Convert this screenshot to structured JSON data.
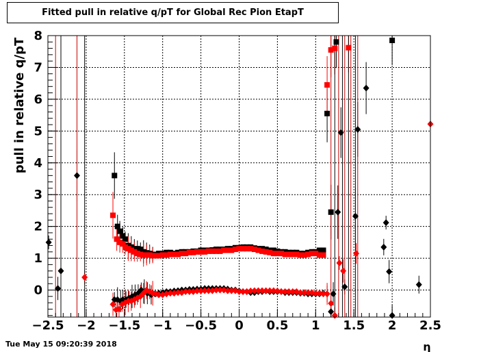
{
  "title": "Fitted pull in relative q/pT for Global Rec Pion EtapT",
  "timestamp": "Tue May 15 09:20:39 2018",
  "chart_data": {
    "type": "scatter",
    "title": "Fitted pull in relative q/pT for Global Rec Pion EtapT",
    "xlabel": "η",
    "ylabel": "pull in relative q/pT",
    "xlim": [
      -2.5,
      2.5
    ],
    "ylim": [
      -0.85,
      8
    ],
    "grid": true,
    "x_ticks": [
      "-2.5",
      "-2",
      "-1.5",
      "-1",
      "-0.5",
      "0",
      "0.5",
      "1",
      "1.5",
      "2",
      "2.5"
    ],
    "y_ticks": [
      "0",
      "1",
      "2",
      "3",
      "4",
      "5",
      "6",
      "7",
      "8"
    ],
    "series": [
      {
        "marker": "square",
        "color": "#000000",
        "x": [
          -1.63,
          -1.59,
          -1.56,
          -1.52,
          -1.49,
          -1.45,
          -1.41,
          -1.37,
          -1.33,
          -1.29,
          -1.25,
          -1.21,
          -1.17,
          -1.13,
          -1.09,
          -1.05,
          -1.0,
          -0.95,
          -0.9,
          -0.85,
          -0.8,
          -0.75,
          -0.7,
          -0.65,
          -0.6,
          -0.55,
          -0.5,
          -0.45,
          -0.4,
          -0.35,
          -0.3,
          -0.25,
          -0.2,
          -0.15,
          -0.1,
          -0.05,
          0.0,
          0.05,
          0.1,
          0.15,
          0.2,
          0.25,
          0.3,
          0.35,
          0.4,
          0.45,
          0.5,
          0.55,
          0.6,
          0.65,
          0.7,
          0.75,
          0.8,
          0.85,
          0.9,
          0.95,
          1.0,
          1.05,
          1.1,
          1.15,
          1.2,
          1.27,
          2.0
        ],
        "y": [
          3.6,
          2.0,
          1.85,
          1.7,
          1.6,
          1.4,
          1.35,
          1.3,
          1.3,
          1.28,
          1.2,
          1.17,
          1.15,
          1.12,
          1.12,
          1.15,
          1.15,
          1.18,
          1.18,
          1.15,
          1.18,
          1.2,
          1.2,
          1.2,
          1.22,
          1.22,
          1.25,
          1.25,
          1.25,
          1.26,
          1.28,
          1.28,
          1.28,
          1.3,
          1.3,
          1.33,
          1.33,
          1.35,
          1.35,
          1.35,
          1.32,
          1.3,
          1.3,
          1.28,
          1.25,
          1.25,
          1.22,
          1.2,
          1.2,
          1.18,
          1.18,
          1.18,
          1.15,
          1.15,
          1.18,
          1.2,
          1.2,
          1.25,
          1.25,
          5.55,
          2.45,
          7.8,
          7.85
        ]
      },
      {
        "marker": "square",
        "color": "#ff0000",
        "x": [
          -1.65,
          -1.6,
          -1.56,
          -1.52,
          -1.49,
          -1.45,
          -1.41,
          -1.37,
          -1.33,
          -1.29,
          -1.25,
          -1.21,
          -1.17,
          -1.13,
          -1.09,
          -1.05,
          -1.0,
          -0.95,
          -0.9,
          -0.85,
          -0.8,
          -0.75,
          -0.7,
          -0.65,
          -0.6,
          -0.55,
          -0.5,
          -0.45,
          -0.4,
          -0.35,
          -0.3,
          -0.25,
          -0.2,
          -0.15,
          -0.1,
          -0.05,
          0.0,
          0.05,
          0.1,
          0.15,
          0.2,
          0.25,
          0.3,
          0.35,
          0.4,
          0.45,
          0.5,
          0.55,
          0.6,
          0.65,
          0.7,
          0.75,
          0.8,
          0.85,
          0.9,
          0.95,
          1.0,
          1.05,
          1.1,
          1.15,
          1.2,
          1.25,
          1.43
        ],
        "y": [
          2.35,
          1.6,
          1.5,
          1.45,
          1.35,
          1.3,
          1.25,
          1.2,
          1.15,
          1.12,
          1.1,
          1.1,
          1.1,
          1.08,
          1.08,
          1.08,
          1.1,
          1.1,
          1.12,
          1.12,
          1.12,
          1.15,
          1.15,
          1.18,
          1.18,
          1.2,
          1.2,
          1.2,
          1.22,
          1.22,
          1.22,
          1.22,
          1.25,
          1.25,
          1.25,
          1.28,
          1.3,
          1.3,
          1.3,
          1.3,
          1.28,
          1.25,
          1.22,
          1.2,
          1.18,
          1.15,
          1.15,
          1.15,
          1.12,
          1.12,
          1.12,
          1.12,
          1.1,
          1.1,
          1.12,
          1.15,
          1.15,
          1.1,
          1.1,
          6.45,
          7.55,
          7.6,
          7.62
        ]
      },
      {
        "marker": "diamond",
        "color": "#000000",
        "x": [
          -2.49,
          -2.37,
          -2.33,
          -2.12,
          -1.63,
          -1.59,
          -1.55,
          -1.52,
          -1.48,
          -1.44,
          -1.4,
          -1.36,
          -1.32,
          -1.28,
          -1.24,
          -1.2,
          -1.15,
          -1.1,
          -1.05,
          -1.0,
          -0.95,
          -0.9,
          -0.85,
          -0.8,
          -0.75,
          -0.7,
          -0.65,
          -0.6,
          -0.55,
          -0.5,
          -0.45,
          -0.4,
          -0.35,
          -0.3,
          -0.25,
          -0.2,
          -0.15,
          -0.1,
          -0.05,
          0.0,
          0.05,
          0.1,
          0.15,
          0.2,
          0.25,
          0.3,
          0.35,
          0.4,
          0.45,
          0.5,
          0.55,
          0.6,
          0.65,
          0.7,
          0.75,
          0.8,
          0.85,
          0.9,
          0.95,
          1.0,
          1.05,
          1.1,
          1.15,
          1.2,
          1.23,
          1.29,
          1.33,
          1.38,
          1.52,
          1.55,
          1.66,
          1.89,
          1.92,
          1.96,
          2.0,
          2.35
        ],
        "y": [
          1.5,
          0.05,
          0.6,
          3.6,
          -0.3,
          -0.3,
          -0.35,
          -0.3,
          -0.3,
          -0.25,
          -0.2,
          -0.15,
          -0.1,
          0.0,
          -0.05,
          -0.1,
          -0.15,
          -0.12,
          -0.1,
          -0.08,
          -0.05,
          -0.05,
          -0.03,
          -0.02,
          0.0,
          0.0,
          0.02,
          0.02,
          0.03,
          0.03,
          0.05,
          0.05,
          0.05,
          0.05,
          0.05,
          0.05,
          0.03,
          0.0,
          0.0,
          -0.03,
          -0.05,
          -0.05,
          -0.08,
          -0.08,
          -0.05,
          -0.05,
          -0.03,
          -0.05,
          -0.05,
          -0.05,
          -0.05,
          -0.08,
          -0.08,
          -0.08,
          -0.08,
          -0.1,
          -0.1,
          -0.12,
          -0.12,
          -0.12,
          -0.12,
          -0.1,
          -0.12,
          -0.68,
          -0.12,
          2.45,
          4.95,
          0.1,
          2.32,
          5.05,
          6.35,
          1.35,
          2.12,
          0.58,
          -0.8,
          0.17
        ]
      },
      {
        "marker": "diamond",
        "color": "#ff0000",
        "x": [
          -2.02,
          -1.65,
          -1.61,
          -1.57,
          -1.53,
          -1.49,
          -1.45,
          -1.41,
          -1.37,
          -1.33,
          -1.29,
          -1.25,
          -1.21,
          -1.17,
          -1.13,
          -1.09,
          -1.05,
          -1.0,
          -0.95,
          -0.9,
          -0.85,
          -0.8,
          -0.75,
          -0.7,
          -0.65,
          -0.6,
          -0.55,
          -0.5,
          -0.45,
          -0.4,
          -0.35,
          -0.3,
          -0.25,
          -0.2,
          -0.15,
          -0.1,
          -0.05,
          0.0,
          0.05,
          0.1,
          0.15,
          0.2,
          0.25,
          0.3,
          0.35,
          0.4,
          0.45,
          0.5,
          0.55,
          0.6,
          0.65,
          0.7,
          0.75,
          0.8,
          0.85,
          0.9,
          0.95,
          1.0,
          1.05,
          1.1,
          1.15,
          1.2,
          1.25,
          1.31,
          1.36,
          1.53,
          2.5
        ],
        "y": [
          0.4,
          -0.45,
          -0.62,
          -0.6,
          -0.45,
          -0.4,
          -0.35,
          -0.35,
          -0.3,
          -0.25,
          -0.2,
          -0.1,
          0.0,
          -0.05,
          -0.1,
          -0.12,
          -0.15,
          -0.15,
          -0.12,
          -0.1,
          -0.1,
          -0.08,
          -0.08,
          -0.05,
          -0.05,
          -0.05,
          -0.03,
          -0.03,
          -0.02,
          -0.02,
          -0.02,
          0.0,
          0.0,
          0.0,
          -0.02,
          -0.02,
          -0.02,
          -0.05,
          -0.05,
          -0.05,
          -0.03,
          -0.02,
          -0.02,
          -0.02,
          -0.02,
          -0.02,
          -0.02,
          -0.03,
          -0.05,
          -0.05,
          -0.05,
          -0.05,
          -0.05,
          -0.08,
          -0.08,
          -0.08,
          -0.08,
          -0.1,
          -0.1,
          -0.12,
          -0.12,
          -0.42,
          -0.8,
          0.85,
          0.6,
          1.15,
          5.22
        ]
      }
    ]
  }
}
